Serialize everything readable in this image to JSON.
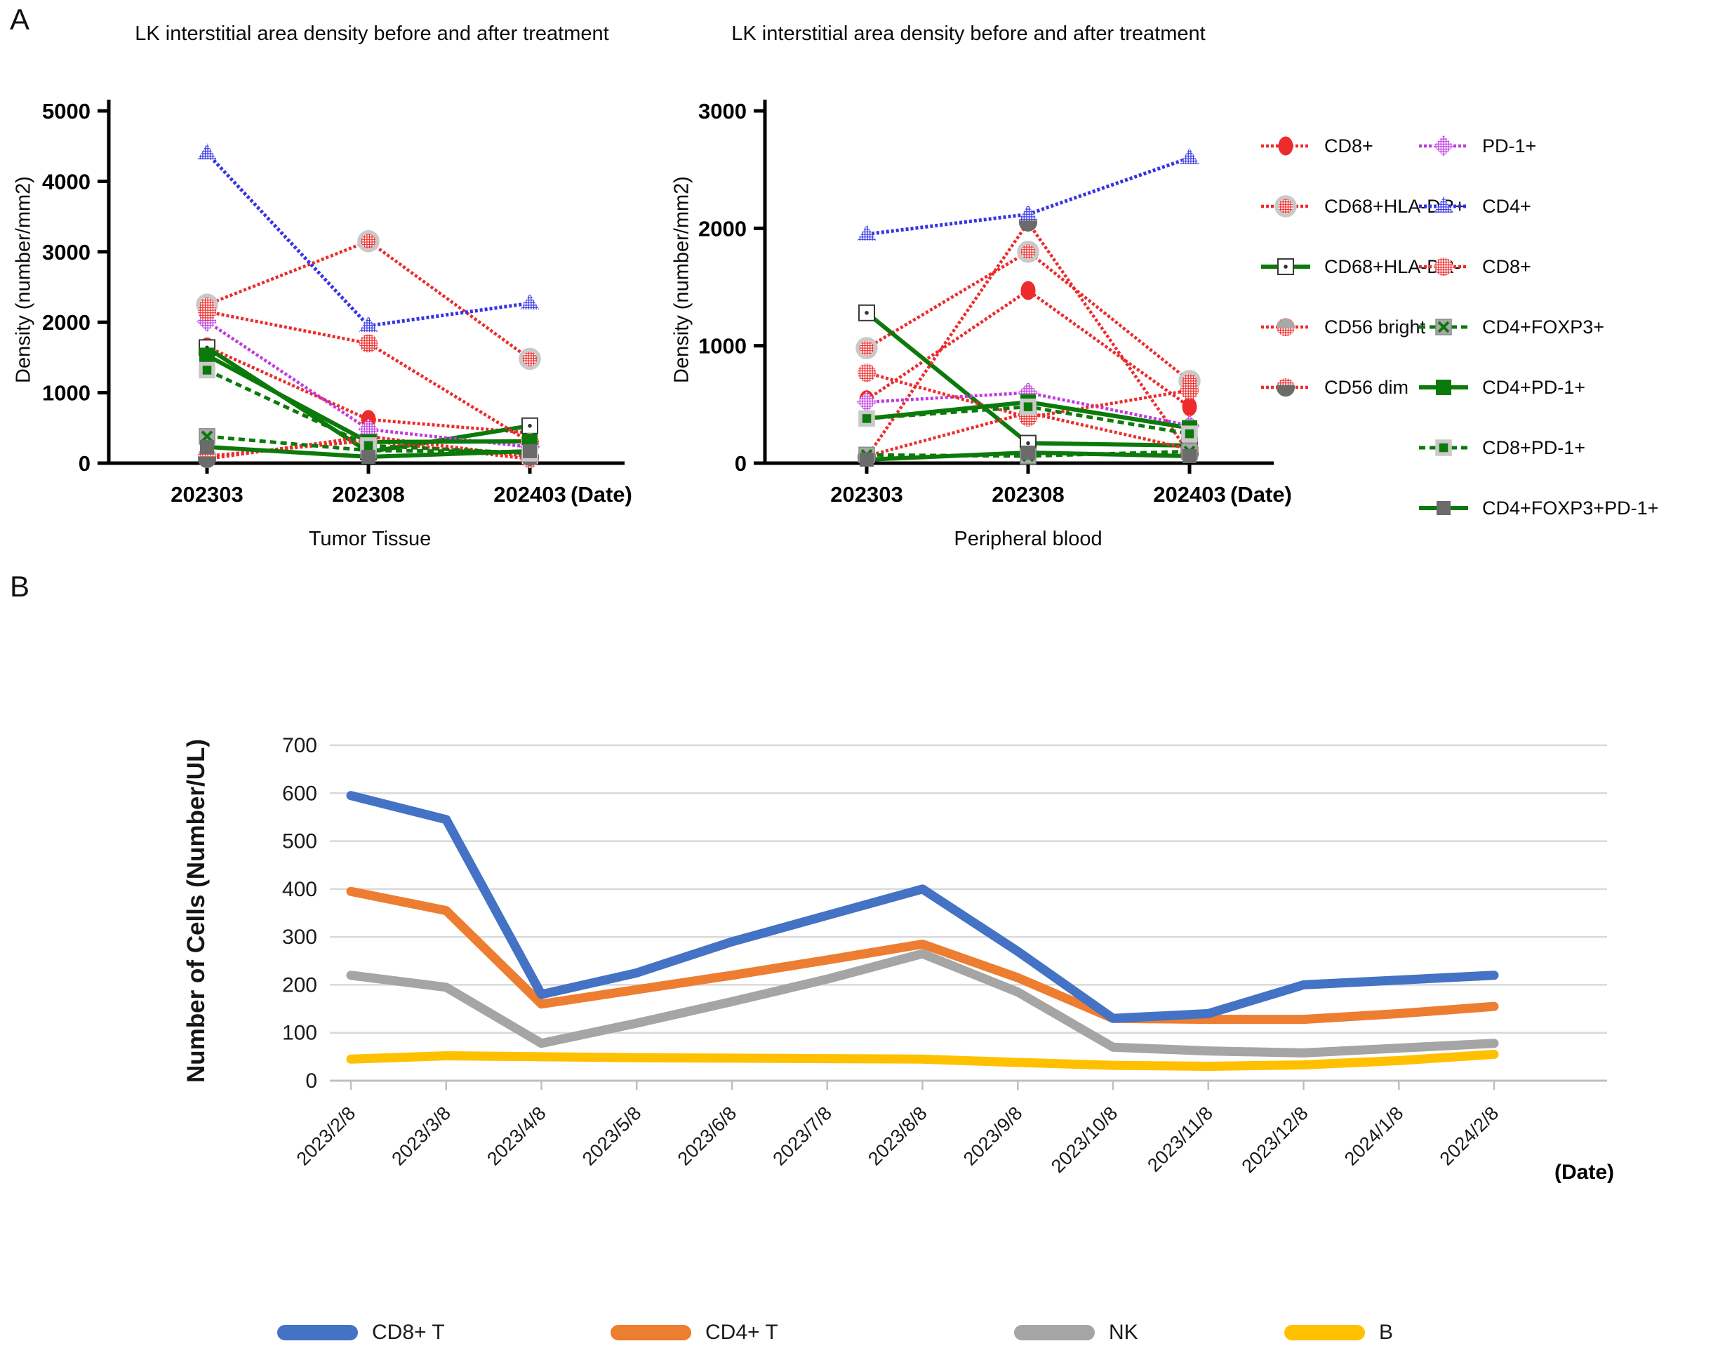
{
  "panelA": {
    "label": "A",
    "legend_columns": [
      [
        0,
        1,
        2,
        3,
        4
      ],
      [
        5,
        6,
        7,
        8,
        9,
        10,
        11
      ]
    ]
  },
  "panelB": {
    "label": "B"
  },
  "colors": {
    "red": "#ED2B2B",
    "blue": "#3434E4",
    "magenta": "#BE3BE2",
    "green": "#0B7A0B",
    "marker_ring": "#C9C9C9",
    "dark_gray_marker": "#6B6B6B",
    "light_gray_marker": "#A8A8A8",
    "axis_black": "#000000",
    "grid_gray": "#D9D9D9",
    "axis_gray": "#BFBFBF",
    "b_blue": "#4472C4",
    "b_orange": "#ED7D31",
    "b_gray": "#A5A5A5",
    "b_yellow": "#FFC000"
  },
  "chart_data": [
    {
      "id": "tumor",
      "type": "line",
      "title": "LK interstitial area density before and after treatment",
      "ylabel": "Density (number/mm2)",
      "axis_title": "Tumor Tissue",
      "date_suffix": "(Date)",
      "categories": [
        "202303",
        "202308",
        "202403"
      ],
      "ylim": [
        0,
        5000
      ],
      "yticks": [
        0,
        1000,
        2000,
        3000,
        4000,
        5000
      ],
      "grid": false,
      "legend_position": "right",
      "series": [
        {
          "name": "CD8+",
          "marker": "ellipseSolid",
          "line": "red-dash",
          "values": [
            1650,
            620,
            430
          ]
        },
        {
          "name": "CD68+HLA-DR+",
          "marker": "circleHatchRing",
          "line": "red-dash",
          "values": [
            2250,
            3150,
            1480
          ]
        },
        {
          "name": "CD68+HLA-DR-",
          "marker": "squareDot",
          "line": "green-solid",
          "values": [
            1640,
            160,
            530
          ]
        },
        {
          "name": "CD56 bright",
          "marker": "circleBright",
          "line": "red-dash",
          "values": [
            100,
            320,
            60
          ]
        },
        {
          "name": "CD56 dim",
          "marker": "circleDim",
          "line": "red-dash",
          "values": [
            60,
            380,
            90
          ]
        },
        {
          "name": "PD-1+",
          "marker": "diamondHatch",
          "line": "magenta-dash",
          "values": [
            2010,
            480,
            230
          ]
        },
        {
          "name": "CD4+",
          "marker": "triangleHatch",
          "line": "blue-dash",
          "values": [
            4400,
            1950,
            2270
          ]
        },
        {
          "name": "CD8+",
          "marker": "circleHatch",
          "line": "red-dash",
          "values": [
            2150,
            1700,
            300
          ]
        },
        {
          "name": "CD4+FOXP3+",
          "marker": "squareX",
          "line": "green-dash",
          "values": [
            380,
            180,
            160
          ]
        },
        {
          "name": "CD4+PD-1+",
          "marker": "squareDarkGreen",
          "line": "green-solid",
          "values": [
            1530,
            300,
            310
          ]
        },
        {
          "name": "CD8+PD-1+",
          "marker": "squareGreenRing",
          "line": "green-dash",
          "values": [
            1320,
            250,
            140
          ]
        },
        {
          "name": "CD4+FOXP3+PD-1+",
          "marker": "squareDarkGray",
          "line": "green-solid",
          "values": [
            230,
            90,
            170
          ]
        }
      ]
    },
    {
      "id": "blood",
      "type": "line",
      "title": "LK interstitial area density before and after treatment",
      "ylabel": "Density (number/mm2)",
      "axis_title": "Peripheral blood",
      "date_suffix": "(Date)",
      "categories": [
        "202303",
        "202308",
        "202403"
      ],
      "ylim": [
        0,
        3000
      ],
      "yticks": [
        0,
        1000,
        2000,
        3000
      ],
      "grid": false,
      "legend_position": "right",
      "series": [
        {
          "name": "CD8+",
          "marker": "ellipseSolid",
          "line": "red-dash",
          "values": [
            540,
            1470,
            480
          ]
        },
        {
          "name": "CD68+HLA-DR+",
          "marker": "circleHatchRing",
          "line": "red-dash",
          "values": [
            980,
            1800,
            700
          ]
        },
        {
          "name": "CD68+HLA-DR-",
          "marker": "squareDot",
          "line": "green-solid",
          "values": [
            1280,
            170,
            150
          ]
        },
        {
          "name": "CD56 bright",
          "marker": "circleBright",
          "line": "red-dash",
          "values": [
            60,
            430,
            120
          ]
        },
        {
          "name": "CD56 dim",
          "marker": "circleDim",
          "line": "red-dash",
          "values": [
            50,
            2050,
            80
          ]
        },
        {
          "name": "PD-1+",
          "marker": "diamondHatch",
          "line": "magenta-dash",
          "values": [
            520,
            600,
            320
          ]
        },
        {
          "name": "CD4+",
          "marker": "triangleHatch",
          "line": "blue-dash",
          "values": [
            1950,
            2120,
            2600
          ]
        },
        {
          "name": "CD8+",
          "marker": "circleHatch",
          "line": "red-dash",
          "values": [
            770,
            390,
            620
          ]
        },
        {
          "name": "CD4+FOXP3+",
          "marker": "squareX",
          "line": "green-dash",
          "values": [
            70,
            60,
            100
          ]
        },
        {
          "name": "CD4+PD-1+",
          "marker": "squareDarkGreen",
          "line": "green-solid",
          "values": [
            380,
            520,
            300
          ]
        },
        {
          "name": "CD8+PD-1+",
          "marker": "squareGreenRing",
          "line": "green-dash",
          "values": [
            380,
            480,
            250
          ]
        },
        {
          "name": "CD4+FOXP3+PD-1+",
          "marker": "squareDarkGray",
          "line": "green-solid",
          "values": [
            30,
            90,
            60
          ]
        }
      ]
    },
    {
      "id": "cells",
      "type": "line",
      "title": "",
      "ylabel": "Number of Cells (Number/UL)",
      "date_suffix": "(Date)",
      "categories": [
        "2023/2/8",
        "2023/3/8",
        "2023/4/8",
        "2023/5/8",
        "2023/6/8",
        "2023/7/8",
        "2023/8/8",
        "2023/9/8",
        "2023/10/8",
        "2023/11/8",
        "2023/12/8",
        "2024/1/8",
        "2024/2/8"
      ],
      "ylim": [
        0,
        700
      ],
      "yticks": [
        0,
        100,
        200,
        300,
        400,
        500,
        600,
        700
      ],
      "grid": true,
      "legend_position": "bottom",
      "series": [
        {
          "name": "CD8+ T",
          "color": "#4472C4",
          "values": [
            595,
            545,
            180,
            225,
            290,
            345,
            400,
            270,
            130,
            140,
            200,
            210,
            220
          ]
        },
        {
          "name": "CD4+ T",
          "color": "#ED7D31",
          "values": [
            395,
            355,
            160,
            190,
            220,
            252,
            285,
            215,
            130,
            128,
            128,
            140,
            155
          ]
        },
        {
          "name": "NK",
          "color": "#A5A5A5",
          "values": [
            220,
            195,
            78,
            120,
            165,
            212,
            265,
            185,
            70,
            62,
            58,
            68,
            78
          ]
        },
        {
          "name": "B",
          "color": "#FFC000",
          "values": [
            45,
            52,
            50,
            48,
            47,
            46,
            45,
            38,
            32,
            30,
            33,
            42,
            55
          ]
        }
      ]
    }
  ]
}
